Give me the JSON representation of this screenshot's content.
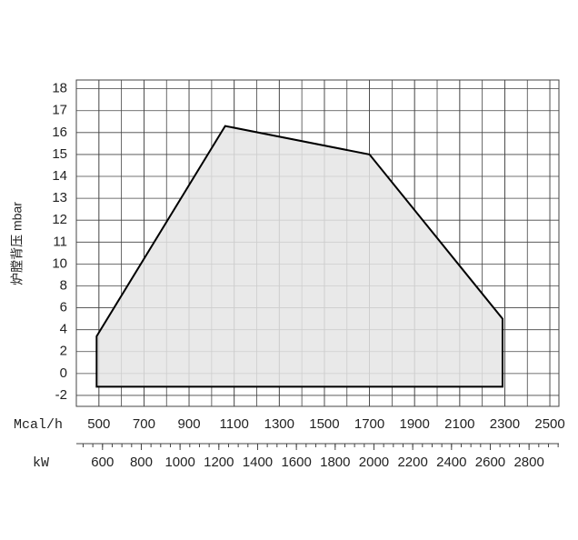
{
  "chart_data": {
    "type": "area",
    "y_label": "炉膛背压  mbar",
    "x_label": "Mcal/h",
    "x2_label": "kW",
    "x": [
      490,
      490,
      1060,
      1700,
      2290,
      2290
    ],
    "series": [
      {
        "color": "#e5e5e5",
        "values": [
          -1.2,
          3.4,
          16.3,
          15,
          5,
          -1.2
        ]
      }
    ],
    "xlim": [
      400,
      2540
    ],
    "xticks": [
      500,
      700,
      900,
      1100,
      1300,
      1500,
      1700,
      1900,
      2100,
      2300,
      2500
    ],
    "x2lim": [
      465,
      2954
    ],
    "x2ticks": [
      600,
      800,
      1000,
      1200,
      1400,
      1600,
      1800,
      2000,
      2200,
      2400,
      2600,
      2800
    ],
    "ylim": [
      -3,
      18.4
    ],
    "yticks": [
      18,
      17,
      16,
      15,
      14,
      13,
      12,
      11,
      10,
      8,
      6,
      4,
      2,
      0,
      -2
    ],
    "grid": true
  }
}
